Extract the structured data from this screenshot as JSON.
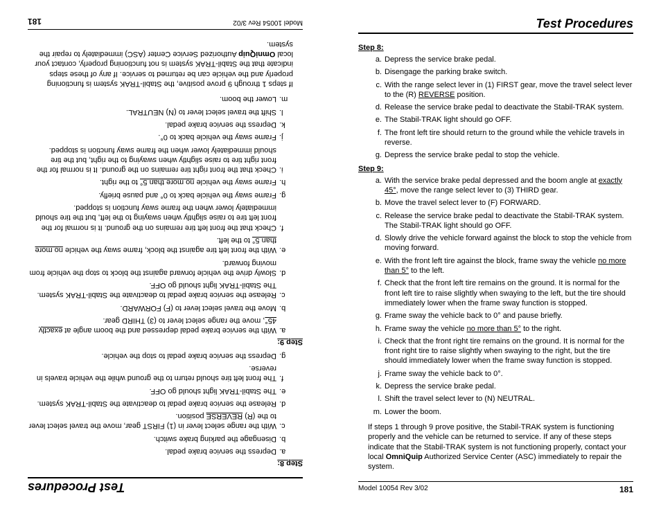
{
  "doc": {
    "header_title": "Test Procedures",
    "step8": {
      "heading": "Step 8:",
      "items": [
        {
          "l": "a.",
          "t": "Depress the service brake pedal."
        },
        {
          "l": "b.",
          "t": "Disengage the parking brake switch."
        },
        {
          "l": "c.",
          "t": "With the range select lever in (1) FIRST gear, move the travel select lever to the (R) ",
          "u": "REVERSE",
          "t2": " position."
        },
        {
          "l": "d.",
          "t": "Release the service brake pedal to deactivate the Stabil-TRAK system."
        },
        {
          "l": "e.",
          "t": "The Stabil-TRAK light should go OFF."
        },
        {
          "l": "f.",
          "t": "The front left tire should return to the ground while the vehicle travels in reverse."
        },
        {
          "l": "g.",
          "t": "Depress the service brake pedal to stop the vehicle."
        }
      ]
    },
    "step9": {
      "heading": "Step 9:",
      "items": [
        {
          "l": "a.",
          "t": "With the service brake pedal depressed and the boom angle at ",
          "u": "exactly 45°",
          "t2": ", move the range select lever to (3) THIRD gear."
        },
        {
          "l": "b.",
          "t": "Move the travel select lever to (F) FORWARD."
        },
        {
          "l": "c.",
          "t": "Release the service brake pedal to deactivate the Stabil-TRAK system. The Stabil-TRAK light should go OFF."
        },
        {
          "l": "d.",
          "t": "Slowly drive the vehicle forward against the block to stop the vehicle from moving forward."
        },
        {
          "l": "e.",
          "t": "With the front left tire against the block, frame sway the vehicle ",
          "u": "no more than 5°",
          "t2": " to the left."
        },
        {
          "l": "f.",
          "t": "Check that the front left tire remains on the ground. It is normal for the front left tire to raise slightly when swaying to the left, but the tire should immediately lower when the frame sway function is stopped."
        },
        {
          "l": "g.",
          "t": "Frame sway the vehicle back to 0° and pause briefly."
        },
        {
          "l": "h.",
          "t": "Frame sway the vehicle ",
          "u": "no more than 5°",
          "t2": " to the right."
        },
        {
          "l": "i.",
          "t": "Check that the front right tire remains on the ground. It is normal for the front right tire to raise slightly when swaying to the right, but the tire should immediately lower when the frame sway function is stopped."
        },
        {
          "l": "j.",
          "t": "Frame sway the vehicle back to 0°."
        },
        {
          "l": "k.",
          "t": "Depress the service brake pedal."
        },
        {
          "l": "l.",
          "t": "Shift the travel select lever to (N) NEUTRAL."
        },
        {
          "l": "m.",
          "t": "Lower the boom."
        }
      ]
    },
    "closing_pre": "If steps 1 through 9 prove positive, the Stabil-TRAK system is functioning properly and the vehicle can be returned to service. If any of these steps indicate that the Stabil-TRAK system is not functioning properly, contact your local ",
    "closing_bold": "OmniQuip",
    "closing_post": " Authorized Service Center (ASC) immediately to repair the system.",
    "footer_model": "Model  10054    Rev  3/02",
    "footer_page": "181"
  }
}
